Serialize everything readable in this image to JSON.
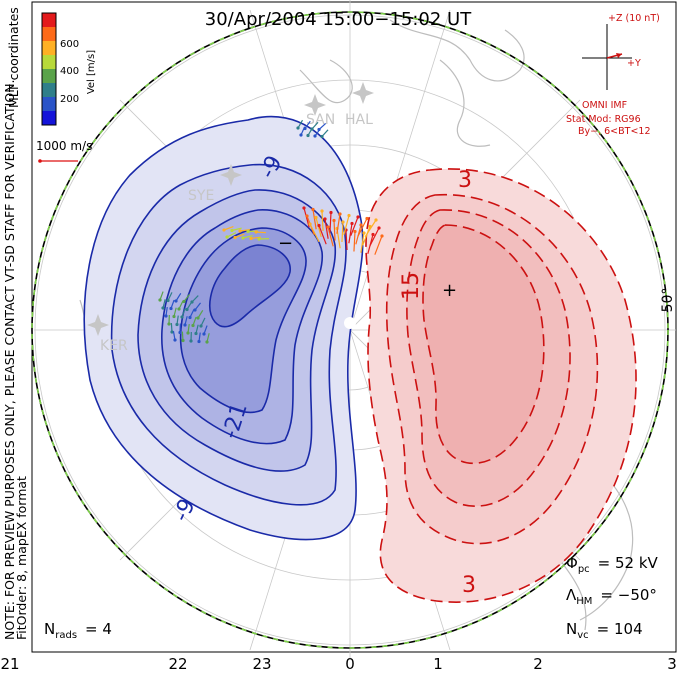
{
  "title": "30/Apr/2004 15:00−15:02 UT",
  "coords_label": "MLT coordinates",
  "colorbar": {
    "label": "Vel [m/s]",
    "ticks": [
      "600",
      "400",
      "200"
    ],
    "colors": [
      "#e31a1c",
      "#fd6a18",
      "#feb024",
      "#b8d93a",
      "#5aa34a",
      "#2f7f8a",
      "#2a54c8",
      "#1414d9"
    ]
  },
  "vector_scale": {
    "label": "1000 m/s",
    "color": "#d11"
  },
  "imf": {
    "bz_label": "+Z (10 nT)",
    "by_label": "+Y",
    "source": "OMNI IMF",
    "model": "Stat Mod: RG96",
    "condition": "By−, 6<BT<12",
    "color": "#d10000"
  },
  "side_note": {
    "line1": "NOTE: FOR PREVIEW PURPOSES ONLY, PLEASE CONTACT VT-SD STAFF FOR VERIFICATION.",
    "line2": "FitOrder: 8, mapEX format"
  },
  "contours": {
    "neg_labels": [
      "-9",
      "-21",
      "-9"
    ],
    "pos_labels": [
      "3",
      "15",
      "3"
    ],
    "neg_color": "#1a2aa8",
    "pos_color": "#cc1111",
    "minus_sign": "−",
    "plus_sign": "+"
  },
  "stations": [
    "SAN",
    "HAL",
    "SYE",
    "KER"
  ],
  "latitude_label": "50°",
  "stats": {
    "nrads_symbol": "N",
    "nrads_sub": "rads",
    "nrads_value": "= 4",
    "phi_symbol": "Φ",
    "phi_sub": "pc",
    "phi_value": "= 52 kV",
    "lambda_symbol": "Λ",
    "lambda_sub": "HM",
    "lambda_value": "= −50°",
    "nvc_symbol": "N",
    "nvc_sub": "vc",
    "nvc_value": "= 104"
  },
  "mlt_ticks": [
    "21",
    "22",
    "23",
    "0",
    "1",
    "2",
    "3"
  ]
}
